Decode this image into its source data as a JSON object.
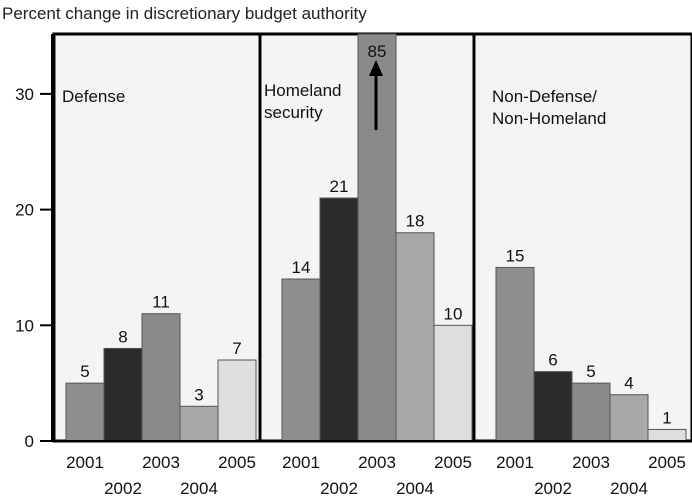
{
  "chart_data": {
    "type": "bar",
    "title": "Percent change in discretionary budget authority",
    "xlabel": "",
    "ylabel": "",
    "ylim": [
      0,
      35
    ],
    "y_ticks": [
      "0",
      "10",
      "20",
      "30"
    ],
    "categories": [
      "2001",
      "2002",
      "2003",
      "2004",
      "2005"
    ],
    "panels": [
      {
        "label": "Defense",
        "values": [
          5,
          8,
          11,
          3,
          7
        ],
        "value_labels": [
          "5",
          "8",
          "11",
          "3",
          "7"
        ]
      },
      {
        "label_lines": [
          "Homeland",
          "security"
        ],
        "values": [
          14,
          21,
          85,
          18,
          10
        ],
        "value_labels": [
          "14",
          "21",
          "85",
          "18",
          "10"
        ],
        "clipped_index": 2
      },
      {
        "label_lines": [
          "Non-Defense/",
          "Non-Homeland"
        ],
        "values": [
          15,
          6,
          5,
          4,
          1
        ],
        "value_labels": [
          "15",
          "6",
          "5",
          "4",
          "1"
        ]
      }
    ],
    "colors": [
      "#8e8e8e",
      "#2b2b2b",
      "#8a8a8a",
      "#a8a8a8",
      "#dedede"
    ]
  }
}
